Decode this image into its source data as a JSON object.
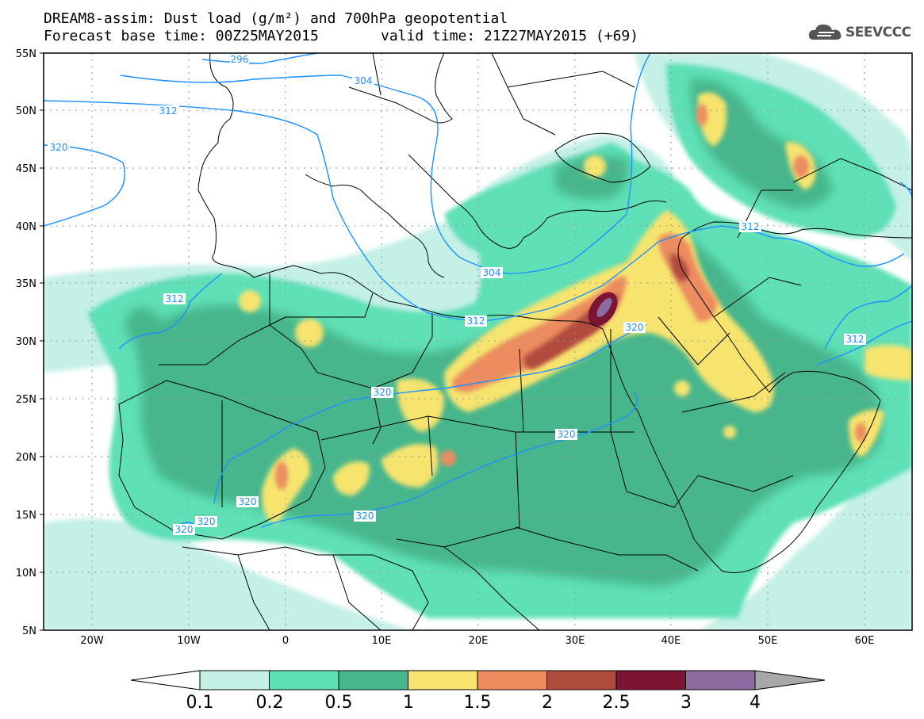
{
  "title_line1": "DREAM8-assim: Dust load (g/m²) and 700hPa geopotential",
  "title_line2": "Forecast base time: 00Z25MAY2015",
  "title_line2b": "valid time: 21Z27MAY2015 (+69)",
  "logo": {
    "text": "SEEVCCC",
    "icon": "cloud-icon"
  },
  "lat_labels": [
    "55N",
    "50N",
    "45N",
    "40N",
    "35N",
    "30N",
    "25N",
    "20N",
    "15N",
    "10N",
    "5N"
  ],
  "lon_labels": [
    "20W",
    "10W",
    "0",
    "10E",
    "20E",
    "30E",
    "40E",
    "50E",
    "60E"
  ],
  "contour_labels": [
    "296",
    "304",
    "304",
    "312",
    "312",
    "312",
    "312",
    "312",
    "320",
    "320",
    "320",
    "320",
    "320",
    "320",
    "320",
    "320"
  ],
  "colorbar": {
    "levels": [
      "0.1",
      "0.2",
      "0.5",
      "1",
      "1.5",
      "2",
      "2.5",
      "3",
      "4"
    ],
    "colors": [
      "#c4f0e6",
      "#5ee0b6",
      "#46b68c",
      "#f6e46e",
      "#ec8c5e",
      "#b04c3e",
      "#7c1434",
      "#8c6ca0"
    ],
    "under_color": "#ffffff",
    "over_color": "#a8a8a8"
  },
  "map_colors": {
    "contour": "#1e90ff",
    "border": "#000000",
    "grid": "#9a9a9a"
  }
}
